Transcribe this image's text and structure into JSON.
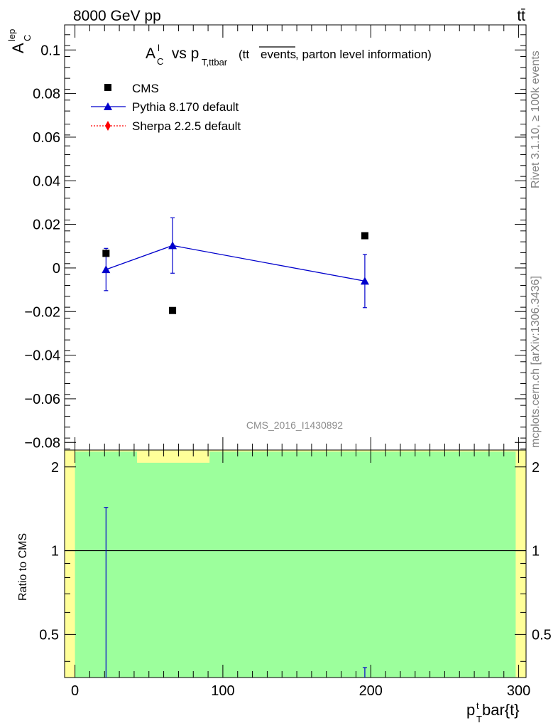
{
  "header": {
    "energy_label": "8000 GeV pp",
    "process_label": "tt̄"
  },
  "side_labels": {
    "rivet": "Rivet 3.1.10, ≥ 100k events",
    "mcplots": "mcplots.cern.ch [arXiv:1306.3436]"
  },
  "plot_title": {
    "main": "A",
    "main_sub": "C",
    "main_sup": "l",
    "vs": " vs p",
    "vs_sub": "T,ttbar",
    "info_pre": "(tt",
    "info_over": "events",
    "info_post": ", parton level information)"
  },
  "watermark": "CMS_2016_I1430892",
  "colors": {
    "cms": "#000000",
    "pythia": "#0000cc",
    "sherpa": "#ff0000",
    "band_green": "#9cff9c",
    "band_yellow": "#ffff99"
  },
  "chart_data": [
    {
      "panel": "main",
      "type": "scatter",
      "ylabel": "A",
      "ylabel_sub": "C",
      "ylabel_sup": "lep",
      "xlim": [
        -7,
        305
      ],
      "ylim": [
        -0.0835,
        0.1115
      ],
      "yticks": [
        0.1,
        0.08,
        0.06,
        0.04,
        0.02,
        0,
        -0.02,
        -0.04,
        -0.06,
        -0.08
      ],
      "ytick_labels": [
        "0.1",
        "0.08",
        "0.06",
        "0.04",
        "0.02",
        "0",
        "−0.02",
        "−0.04",
        "−0.06",
        "−0.08"
      ],
      "series": [
        {
          "name": "CMS",
          "style": "markers",
          "x": [
            21,
            66,
            196
          ],
          "y": [
            0.0067,
            -0.0195,
            0.0148
          ]
        },
        {
          "name": "Pythia 8.170 default",
          "style": "line-triangles",
          "x": [
            21,
            66,
            196
          ],
          "y": [
            -0.0007,
            0.0103,
            -0.006
          ],
          "err": [
            0.0097,
            0.0127,
            0.0122
          ]
        },
        {
          "name": "Sherpa 2.2.5 default",
          "style": "dotted-diamonds",
          "x": [],
          "y": []
        }
      ]
    },
    {
      "panel": "ratio",
      "type": "line",
      "ylabel": "Ratio to CMS",
      "xlabel": "p",
      "xlabel_sub": "T",
      "xlabel_sup": "t",
      "xlabel_rest": "bar{t}",
      "xlim": [
        -7,
        305
      ],
      "ylim": [
        0.35,
        2.3
      ],
      "yticks": [
        0.5,
        1,
        2
      ],
      "ytick_labels": [
        "0.5",
        "1",
        "2"
      ],
      "xticks": [
        0,
        100,
        200,
        300
      ],
      "xtick_labels": [
        "0",
        "100",
        "200",
        "300"
      ],
      "reference": 1,
      "bands": {
        "green": [
          0,
          298
        ],
        "yellow": [
          42,
          91
        ]
      },
      "pythia_errbars": [
        {
          "x": 21,
          "low": 0.35,
          "high": 1.43
        },
        {
          "x": 196,
          "low": 0.35,
          "high": 0.38
        }
      ]
    }
  ]
}
